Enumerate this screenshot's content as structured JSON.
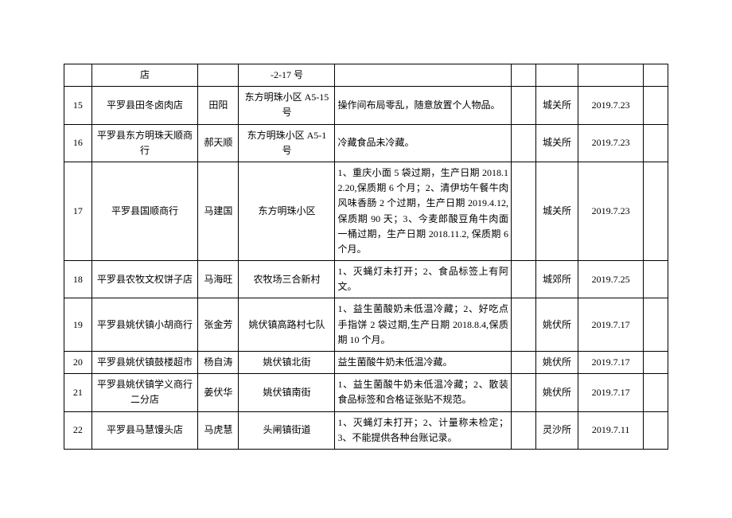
{
  "rows": [
    {
      "idx": "",
      "name": "店",
      "person": "",
      "addr": "-2-17 号",
      "issue": "",
      "dept": "",
      "date": ""
    },
    {
      "idx": "15",
      "name": "平罗县田冬卤肉店",
      "person": "田阳",
      "addr": "东方明珠小区 A5-15 号",
      "issue": "操作间布局零乱，随意放置个人物品。",
      "dept": "城关所",
      "date": "2019.7.23"
    },
    {
      "idx": "16",
      "name": "平罗县东方明珠天顺商行",
      "person": "郝天顺",
      "addr": "东方明珠小区 A5-1 号",
      "issue": "冷藏食品未冷藏。",
      "dept": "城关所",
      "date": "2019.7.23"
    },
    {
      "idx": "17",
      "name": "平罗县国顺商行",
      "person": "马建国",
      "addr": "东方明珠小区",
      "issue": "1、重庆小面 5 袋过期，生产日期 2018.12.20,保质期 6 个月；2、清伊坊午餐牛肉风味香肠 2 个过期，生产日期 2019.4.12,保质期 90 天；3、今麦郎酸豆角牛肉面一桶过期，生产日期 2018.11.2, 保质期 6 个月。",
      "dept": "城关所",
      "date": "2019.7.23"
    },
    {
      "idx": "18",
      "name": "平罗县农牧文权饼子店",
      "person": "马海旺",
      "addr": "农牧场三合新村",
      "issue": "1、灭蝇灯未打开；2、食品标签上有阿文。",
      "dept": "城郊所",
      "date": "2019.7.25"
    },
    {
      "idx": "19",
      "name": "平罗县姚伏镇小胡商行",
      "person": "张金芳",
      "addr": "姚伏镇高路村七队",
      "issue": "1、益生菌酸奶未低温冷藏；2、好吃点手指饼 2 袋过期,生产日期 2018.8.4,保质期 10 个月。",
      "dept": "姚伏所",
      "date": "2019.7.17"
    },
    {
      "idx": "20",
      "name": "平罗县姚伏镇鼓楼超市",
      "person": "杨自涛",
      "addr": "姚伏镇北街",
      "issue": "益生菌酸牛奶未低温冷藏。",
      "dept": "姚伏所",
      "date": "2019.7.17"
    },
    {
      "idx": "21",
      "name": "平罗县姚伏镇学义商行二分店",
      "person": "姜伏华",
      "addr": "姚伏镇南街",
      "issue": "1、益生菌酸牛奶未低温冷藏；2、散装食品标签和合格证张贴不规范。",
      "dept": "姚伏所",
      "date": "2019.7.17"
    },
    {
      "idx": "22",
      "name": "平罗县马慧馒头店",
      "person": "马虎慧",
      "addr": "头闸镇街道",
      "issue": "1、灭蝇灯未打开；2、计量称未检定；3、不能提供各种台账记录。",
      "dept": "灵沙所",
      "date": "2019.7.11"
    }
  ]
}
